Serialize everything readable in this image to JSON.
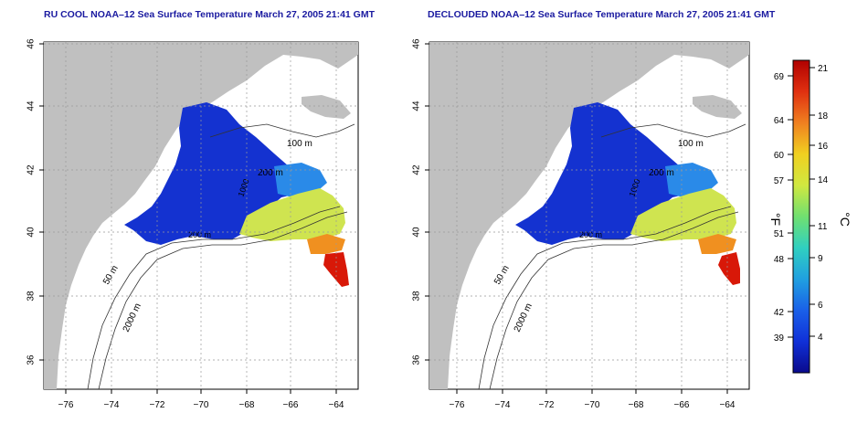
{
  "panels": [
    {
      "title": "RU COOL NOAA–12 Sea Surface Temperature March 27, 2005 21:41 GMT",
      "contour_labels": [
        "100 m",
        "200 m",
        "1000",
        "200 m",
        "50 m",
        "2000 m"
      ]
    },
    {
      "title": "DECLOUDED NOAA–12 Sea Surface Temperature March 27, 2005 21:41 GMT",
      "contour_labels": [
        "100 m",
        "200 m",
        "1000",
        "200 m",
        "50 m",
        "2000 m"
      ]
    }
  ],
  "axes": {
    "x_ticks": [
      "−76",
      "−74",
      "−72",
      "−70",
      "−68",
      "−66",
      "−64"
    ],
    "y_ticks": [
      "36",
      "38",
      "40",
      "42",
      "44",
      "46"
    ]
  },
  "colorbar": {
    "f_ticks": [
      "69",
      "64",
      "60",
      "57",
      "51",
      "48",
      "42",
      "39"
    ],
    "c_ticks": [
      "21",
      "18",
      "16",
      "14",
      "11",
      "9",
      "6",
      "4"
    ],
    "f_unit": "°F",
    "c_unit": "°C",
    "colors": [
      "#0a0a8c",
      "#1030d8",
      "#1a60e8",
      "#20a0e0",
      "#30d0c0",
      "#70e070",
      "#d0e840",
      "#f0d020",
      "#f08020",
      "#e03010",
      "#b00000"
    ]
  },
  "colors": {
    "land": "#c0c0c0",
    "ocean": "#ffffff",
    "cold_water": "#1a3ad8",
    "warm_water": "#d8e840",
    "hot_water": "#e02010"
  }
}
